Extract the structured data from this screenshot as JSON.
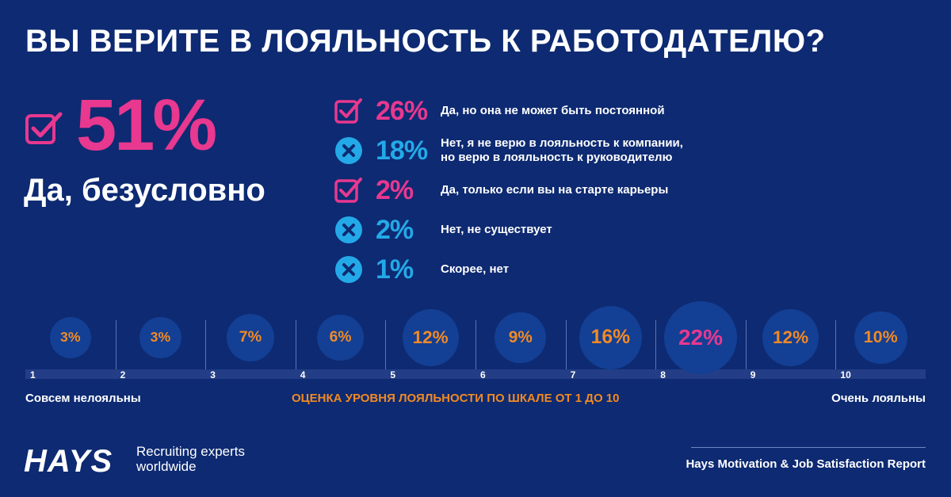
{
  "title": "ВЫ ВЕРИТЕ В ЛОЯЛЬНОСТЬ К РАБОТОДАТЕЛЮ?",
  "colors": {
    "background": "#0d2a72",
    "pink": "#e8388f",
    "blue": "#24a9e8",
    "orange": "#f08a24",
    "circle": "#133f94"
  },
  "main": {
    "icon": "checkbox-check-icon",
    "percent": "51%",
    "label": "Да, безусловно"
  },
  "answers": [
    {
      "type": "yes",
      "icon": "checkbox-check-icon",
      "percent": "26%",
      "text": "Да, но она не может быть постоянной"
    },
    {
      "type": "no",
      "icon": "x-circle-icon",
      "percent": "18%",
      "text": "Нет, я не верю в лояльность к компании, но верю в лояльность к руководителю"
    },
    {
      "type": "yes",
      "icon": "checkbox-check-icon",
      "percent": "2%",
      "text": "Да, только если вы на старте карьеры"
    },
    {
      "type": "no",
      "icon": "x-circle-icon",
      "percent": "2%",
      "text": "Нет, не существует"
    },
    {
      "type": "no",
      "icon": "x-circle-icon",
      "percent": "1%",
      "text": "Скорее, нет"
    }
  ],
  "scale": {
    "items": [
      {
        "num": "1",
        "value": 3,
        "label": "3%"
      },
      {
        "num": "2",
        "value": 3,
        "label": "3%"
      },
      {
        "num": "3",
        "value": 7,
        "label": "7%"
      },
      {
        "num": "4",
        "value": 6,
        "label": "6%"
      },
      {
        "num": "5",
        "value": 12,
        "label": "12%"
      },
      {
        "num": "6",
        "value": 9,
        "label": "9%"
      },
      {
        "num": "7",
        "value": 16,
        "label": "16%"
      },
      {
        "num": "8",
        "value": 22,
        "label": "22%"
      },
      {
        "num": "9",
        "value": 12,
        "label": "12%"
      },
      {
        "num": "10",
        "value": 10,
        "label": "10%"
      }
    ],
    "low_label": "Совсем нелояльны",
    "caption": "ОЦЕНКА УРОВНЯ ЛОЯЛЬНОСТИ ПО ШКАЛЕ ОТ 1 ДО 10",
    "high_label": "Очень лояльны"
  },
  "footer": {
    "logo": "HAYS",
    "tagline_line1": "Recruiting experts",
    "tagline_line2": "worldwide",
    "report": "Hays Motivation & Job Satisfaction Report"
  }
}
